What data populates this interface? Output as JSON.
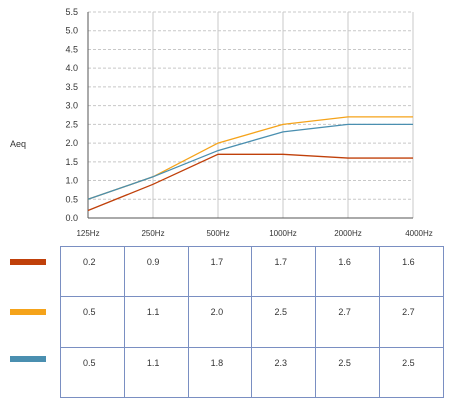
{
  "chart_data": {
    "type": "line",
    "x": [
      "125Hz",
      "250Hz",
      "500Hz",
      "1000Hz",
      "2000Hz",
      "4000Hz"
    ],
    "ylabel": "Aeq",
    "xlabel": "",
    "title": "",
    "ylim": [
      0,
      5.5
    ],
    "y_ticks": [
      "0.0",
      "0.5",
      "1.0",
      "1.5",
      "2.0",
      "2.5",
      "3.0",
      "3.5",
      "4.0",
      "4.5",
      "5.0",
      "5.5"
    ],
    "grid": true,
    "legend": "bottom-left table with color swatches",
    "series": [
      {
        "color": "#c0400a",
        "values": [
          0.2,
          0.9,
          1.7,
          1.7,
          1.6,
          1.6
        ]
      },
      {
        "color": "#f5a31a",
        "values": [
          0.5,
          1.1,
          2.0,
          2.5,
          2.7,
          2.7
        ]
      },
      {
        "color": "#4a8fb0",
        "values": [
          0.5,
          1.1,
          1.8,
          2.3,
          2.5,
          2.5
        ]
      }
    ]
  },
  "table": {
    "rows": [
      {
        "cells": [
          "0.2",
          "0.9",
          "1.7",
          "1.7",
          "1.6",
          "1.6"
        ]
      },
      {
        "cells": [
          "0.5",
          "1.1",
          "2.0",
          "2.5",
          "2.7",
          "2.7"
        ]
      },
      {
        "cells": [
          "0.5",
          "1.1",
          "1.8",
          "2.3",
          "2.5",
          "2.5"
        ]
      }
    ]
  }
}
